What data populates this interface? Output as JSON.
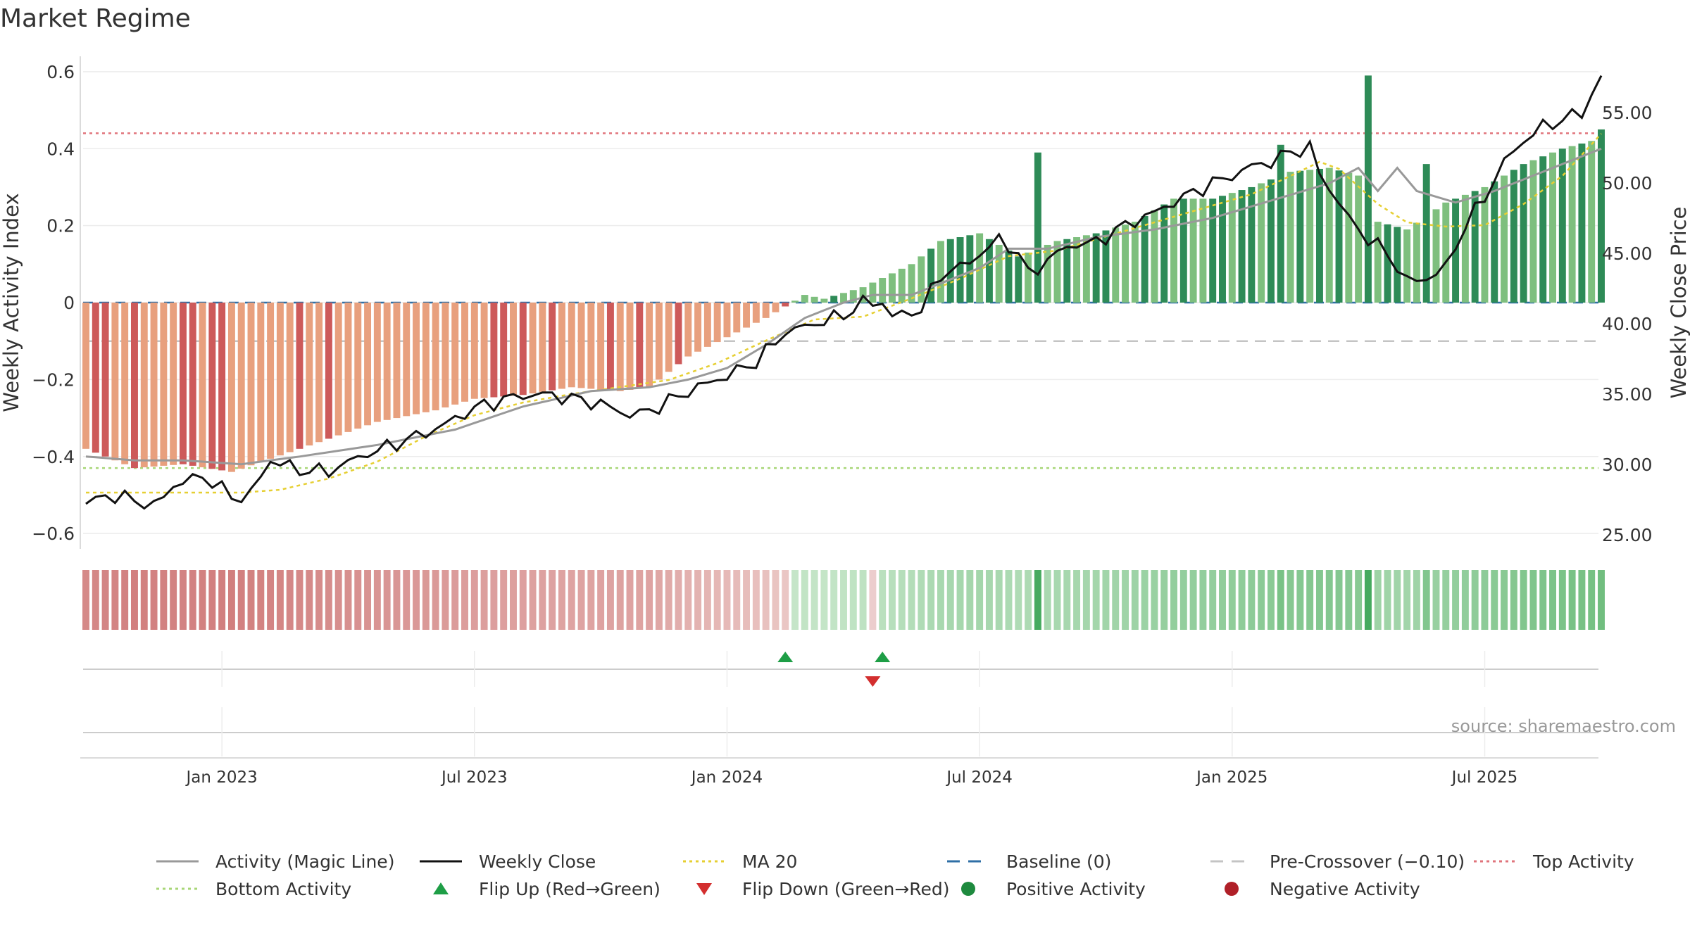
{
  "chart_data": {
    "type": "bar",
    "title": "Market Regime",
    "ylabel": "Weekly Activity Index",
    "y2label": "Weekly Close Price",
    "ylim": [
      -0.64,
      0.64
    ],
    "y2lim": [
      24.0,
      59.0
    ],
    "yticks": [
      0.6,
      0.4,
      0.2,
      0,
      -0.2,
      -0.4,
      -0.6
    ],
    "ytick_labels": [
      "0.6",
      "0.4",
      "0.2",
      "0",
      "−0.2",
      "−0.4",
      "−0.6"
    ],
    "y2ticks": [
      55,
      50,
      45,
      40,
      35,
      30,
      25
    ],
    "y2tick_labels": [
      "55.00",
      "50.00",
      "45.00",
      "40.00",
      "35.00",
      "30.00",
      "25.00"
    ],
    "xticks": [
      {
        "label": "Jan 2023",
        "week": 14
      },
      {
        "label": "Jul 2023",
        "week": 40
      },
      {
        "label": "Jan 2024",
        "week": 66
      },
      {
        "label": "Jul 2024",
        "week": 92
      },
      {
        "label": "Jan 2025",
        "week": 118
      },
      {
        "label": "Jul 2025",
        "week": 144
      }
    ],
    "week_count": 157,
    "reference_lines": {
      "baseline": 0,
      "pre_crossover": -0.1,
      "top_activity": 0.44,
      "bottom_activity": -0.43
    },
    "activity_keypoints": [
      [
        0,
        -0.38
      ],
      [
        5,
        -0.43
      ],
      [
        10,
        -0.42
      ],
      [
        15,
        -0.44
      ],
      [
        22,
        -0.38
      ],
      [
        30,
        -0.31
      ],
      [
        36,
        -0.28
      ],
      [
        40,
        -0.25
      ],
      [
        45,
        -0.24
      ],
      [
        50,
        -0.22
      ],
      [
        55,
        -0.23
      ],
      [
        58,
        -0.22
      ],
      [
        62,
        -0.14
      ],
      [
        66,
        -0.09
      ],
      [
        70,
        -0.04
      ],
      [
        72,
        -0.01
      ],
      [
        74,
        0.02
      ],
      [
        76,
        0.01
      ],
      [
        80,
        0.04
      ],
      [
        85,
        0.1
      ],
      [
        88,
        0.16
      ],
      [
        92,
        0.18
      ],
      [
        96,
        0.12
      ],
      [
        100,
        0.16
      ],
      [
        104,
        0.18
      ],
      [
        108,
        0.21
      ],
      [
        112,
        0.27
      ],
      [
        116,
        0.27
      ],
      [
        120,
        0.3
      ],
      [
        124,
        0.34
      ],
      [
        128,
        0.35
      ],
      [
        131,
        0.33
      ],
      [
        133,
        0.21
      ],
      [
        136,
        0.19
      ],
      [
        140,
        0.26
      ],
      [
        144,
        0.3
      ],
      [
        148,
        0.36
      ],
      [
        152,
        0.4
      ],
      [
        155,
        0.42
      ],
      [
        156,
        0.45
      ]
    ],
    "activity_spikes": [
      [
        98,
        0.39
      ],
      [
        123,
        0.41
      ],
      [
        132,
        0.59
      ],
      [
        138,
        0.36
      ]
    ],
    "strong_weeks": [
      1,
      2,
      5,
      10,
      11,
      13,
      14,
      22,
      25,
      42,
      43,
      45,
      48,
      54,
      57,
      61,
      72,
      77,
      87,
      89,
      90,
      91,
      93,
      95,
      96,
      98,
      101,
      104,
      105,
      109,
      111,
      113,
      116,
      117,
      119,
      120,
      122,
      123,
      125,
      127,
      129,
      132,
      134,
      135,
      138,
      141,
      143,
      145,
      147,
      148,
      150,
      152,
      154,
      156
    ],
    "magic_line_keypoints": [
      [
        0,
        -0.4
      ],
      [
        5,
        -0.41
      ],
      [
        10,
        -0.41
      ],
      [
        16,
        -0.42
      ],
      [
        22,
        -0.4
      ],
      [
        30,
        -0.37
      ],
      [
        38,
        -0.33
      ],
      [
        45,
        -0.27
      ],
      [
        52,
        -0.23
      ],
      [
        58,
        -0.22
      ],
      [
        62,
        -0.2
      ],
      [
        66,
        -0.17
      ],
      [
        70,
        -0.11
      ],
      [
        74,
        -0.04
      ],
      [
        78,
        0.0
      ],
      [
        81,
        0.02
      ],
      [
        85,
        0.02
      ],
      [
        88,
        0.05
      ],
      [
        92,
        0.09
      ],
      [
        95,
        0.14
      ],
      [
        99,
        0.14
      ],
      [
        104,
        0.17
      ],
      [
        110,
        0.19
      ],
      [
        116,
        0.22
      ],
      [
        120,
        0.25
      ],
      [
        124,
        0.28
      ],
      [
        128,
        0.31
      ],
      [
        131,
        0.35
      ],
      [
        133,
        0.29
      ],
      [
        135,
        0.35
      ],
      [
        137,
        0.29
      ],
      [
        141,
        0.26
      ],
      [
        145,
        0.29
      ],
      [
        149,
        0.33
      ],
      [
        153,
        0.37
      ],
      [
        156,
        0.4
      ]
    ],
    "close_keypoints": [
      [
        0,
        27.2
      ],
      [
        2,
        27.8
      ],
      [
        5,
        27.5
      ],
      [
        7,
        27.0
      ],
      [
        9,
        28.5
      ],
      [
        12,
        29.2
      ],
      [
        14,
        28.2
      ],
      [
        16,
        27.5
      ],
      [
        17,
        28.0
      ],
      [
        19,
        30.3
      ],
      [
        22,
        29.6
      ],
      [
        25,
        29.5
      ],
      [
        28,
        30.5
      ],
      [
        32,
        31.5
      ],
      [
        36,
        32.5
      ],
      [
        40,
        34.0
      ],
      [
        44,
        34.8
      ],
      [
        47,
        35.0
      ],
      [
        50,
        34.7
      ],
      [
        53,
        34.3
      ],
      [
        56,
        33.5
      ],
      [
        58,
        33.8
      ],
      [
        60,
        34.5
      ],
      [
        63,
        35.5
      ],
      [
        66,
        36.3
      ],
      [
        69,
        37.3
      ],
      [
        72,
        39.4
      ],
      [
        75,
        40.0
      ],
      [
        78,
        40.6
      ],
      [
        80,
        41.5
      ],
      [
        82,
        41.5
      ],
      [
        83,
        40.5
      ],
      [
        86,
        41.0
      ],
      [
        88,
        43.5
      ],
      [
        90,
        44.0
      ],
      [
        92,
        44.9
      ],
      [
        94,
        46.0
      ],
      [
        96,
        45.0
      ],
      [
        97,
        43.5
      ],
      [
        99,
        44.5
      ],
      [
        101,
        45.5
      ],
      [
        104,
        45.8
      ],
      [
        107,
        47.0
      ],
      [
        110,
        47.9
      ],
      [
        113,
        49.0
      ],
      [
        116,
        50.0
      ],
      [
        118,
        50.5
      ],
      [
        120,
        51.2
      ],
      [
        122,
        51.5
      ],
      [
        124,
        52.2
      ],
      [
        126,
        52.5
      ],
      [
        127,
        50.7
      ],
      [
        130,
        47.5
      ],
      [
        132,
        46.0
      ],
      [
        134,
        45.0
      ],
      [
        136,
        43.0
      ],
      [
        138,
        43.2
      ],
      [
        140,
        44.0
      ],
      [
        142,
        47.0
      ],
      [
        144,
        49.0
      ],
      [
        146,
        51.5
      ],
      [
        148,
        53.0
      ],
      [
        150,
        54.0
      ],
      [
        152,
        54.5
      ],
      [
        154,
        55.0
      ],
      [
        156,
        57.5
      ]
    ],
    "ma20_keypoints": [
      [
        0,
        28.0
      ],
      [
        10,
        28.0
      ],
      [
        16,
        28.0
      ],
      [
        20,
        28.2
      ],
      [
        25,
        29.0
      ],
      [
        30,
        30.2
      ],
      [
        35,
        32.0
      ],
      [
        40,
        33.5
      ],
      [
        45,
        34.4
      ],
      [
        50,
        35.0
      ],
      [
        55,
        35.5
      ],
      [
        60,
        36.0
      ],
      [
        65,
        37.2
      ],
      [
        70,
        38.8
      ],
      [
        75,
        40.3
      ],
      [
        80,
        40.5
      ],
      [
        85,
        41.8
      ],
      [
        90,
        43.2
      ],
      [
        95,
        44.8
      ],
      [
        100,
        45.2
      ],
      [
        105,
        46.2
      ],
      [
        110,
        47.2
      ],
      [
        115,
        48.2
      ],
      [
        120,
        49.2
      ],
      [
        124,
        50.5
      ],
      [
        127,
        51.5
      ],
      [
        129,
        51.0
      ],
      [
        133,
        48.5
      ],
      [
        136,
        47.2
      ],
      [
        140,
        46.9
      ],
      [
        144,
        47.0
      ],
      [
        148,
        48.5
      ],
      [
        152,
        50.5
      ],
      [
        156,
        53.5
      ]
    ],
    "regime_flips": {
      "up": [
        72,
        82
      ],
      "down": [
        81
      ],
      "regime_change_week": 72
    },
    "legend": [
      {
        "label": "Activity (Magic Line)",
        "style": "solid",
        "color": "#999999"
      },
      {
        "label": "Weekly Close",
        "style": "solid",
        "color": "#111111"
      },
      {
        "label": "MA 20",
        "style": "dotted",
        "color": "#e6cf32"
      },
      {
        "label": "Baseline (0)",
        "style": "dashed",
        "color": "#2f6fa6"
      },
      {
        "label": "Pre-Crossover (−0.10)",
        "style": "dashed",
        "color": "#c4c4c4"
      },
      {
        "label": "Top Activity",
        "style": "dotted",
        "color": "#e0747c"
      },
      {
        "label": "Bottom Activity",
        "style": "dotted",
        "color": "#a8d677"
      },
      {
        "label": "Flip Up (Red→Green)",
        "style": "triangle-up",
        "color": "#1e9e46"
      },
      {
        "label": "Flip Down (Green→Red)",
        "style": "triangle-down",
        "color": "#d32f2f"
      },
      {
        "label": "Positive Activity",
        "style": "circle",
        "color": "#1e8a3e"
      },
      {
        "label": "Negative Activity",
        "style": "circle",
        "color": "#b02028"
      }
    ],
    "source": "source: sharemaestro.com",
    "colors": {
      "neg_strong": "#cd5a5a",
      "neg_weak": "#e8a07e",
      "pos_strong": "#2e8b57",
      "pos_weak": "#7ebf7e",
      "magic_line": "#999999",
      "close_line": "#111111",
      "ma20": "#e6cf32",
      "baseline": "#2f6fa6",
      "pre_crossover": "#c4c4c4",
      "top_activity": "#e0747c",
      "bottom_activity": "#a8d677"
    }
  }
}
